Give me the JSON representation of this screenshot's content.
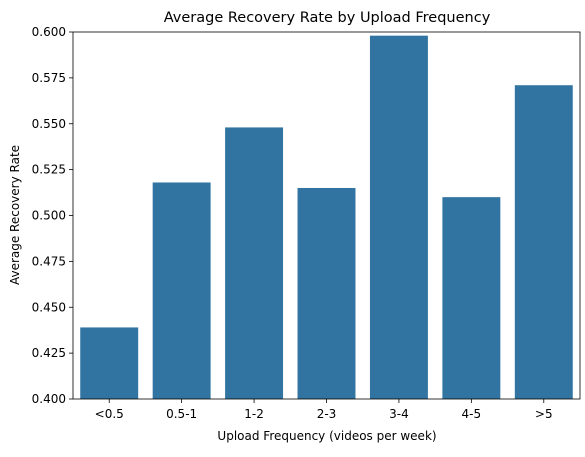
{
  "chart_data": {
    "type": "bar",
    "title": "Average Recovery Rate by Upload Frequency",
    "xlabel": "Upload Frequency (videos per week)",
    "ylabel": "Average Recovery Rate",
    "categories": [
      "<0.5",
      "0.5-1",
      "1-2",
      "2-3",
      "3-4",
      "4-5",
      ">5"
    ],
    "values": [
      0.439,
      0.518,
      0.548,
      0.515,
      0.598,
      0.51,
      0.571
    ],
    "ylim": [
      0.4,
      0.6
    ],
    "yticks": [
      "0.400",
      "0.425",
      "0.450",
      "0.475",
      "0.500",
      "0.525",
      "0.550",
      "0.575",
      "0.600"
    ],
    "bar_color": "#3274a1",
    "grid": false,
    "legend": "none"
  }
}
